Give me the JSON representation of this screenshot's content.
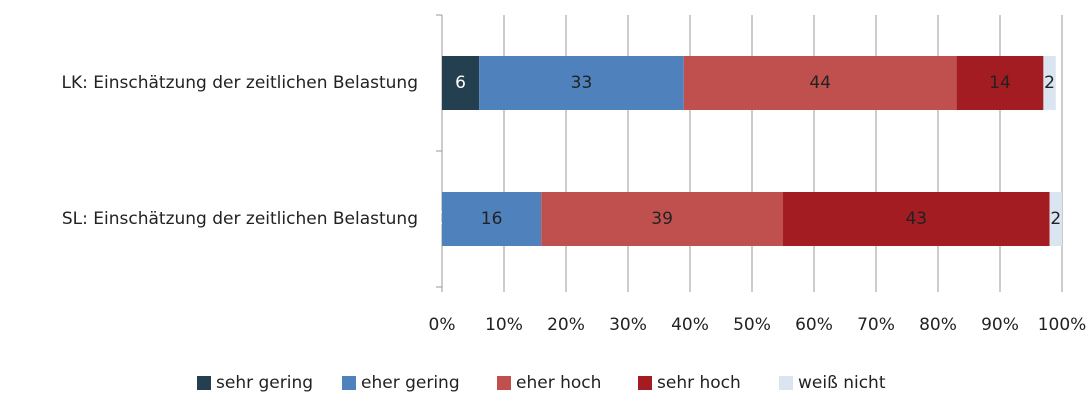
{
  "chart_data": {
    "type": "stacked_barh",
    "categories": [
      "LK: Einschätzung der zeitlichen Belastung",
      "SL: Einschätzung der zeitlichen Belastung"
    ],
    "series": [
      {
        "name": "sehr gering",
        "color": "#243f4f",
        "values": [
          6,
          0
        ]
      },
      {
        "name": "eher gering",
        "color": "#4f81bd",
        "values": [
          33,
          16
        ]
      },
      {
        "name": "eher hoch",
        "color": "#c0504d",
        "values": [
          44,
          39
        ]
      },
      {
        "name": "sehr hoch",
        "color": "#a31c22",
        "values": [
          14,
          43
        ]
      },
      {
        "name": "weiß nicht",
        "color": "#dbe5f1",
        "values": [
          2,
          2
        ]
      }
    ],
    "xlim": [
      0,
      100
    ],
    "xticks": [
      {
        "value": 0,
        "label": "0%"
      },
      {
        "value": 10,
        "label": "10%"
      },
      {
        "value": 20,
        "label": "20%"
      },
      {
        "value": 30,
        "label": "30%"
      },
      {
        "value": 40,
        "label": "40%"
      },
      {
        "value": 50,
        "label": "50%"
      },
      {
        "value": 60,
        "label": "60%"
      },
      {
        "value": 70,
        "label": "70%"
      },
      {
        "value": 80,
        "label": "80%"
      },
      {
        "value": 90,
        "label": "90%"
      },
      {
        "value": 100,
        "label": "100%"
      }
    ],
    "grid": true,
    "legend": "bottom"
  }
}
